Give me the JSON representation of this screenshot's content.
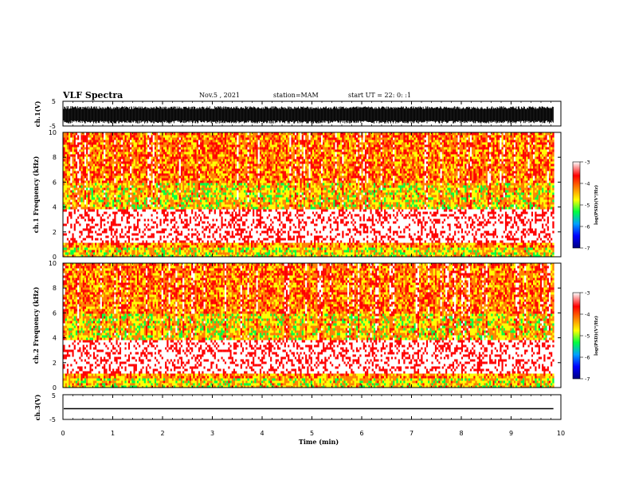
{
  "header": {
    "title": "VLF Spectra",
    "date": "Nov.5 , 2021",
    "station": "station=MAM",
    "start": "start UT = 22: 0: :1"
  },
  "chart_data": [
    {
      "type": "line",
      "name": "ch1-waveform",
      "ylabel": "ch.1(V)",
      "ylim": [
        -5,
        5
      ],
      "yticks": [
        "5",
        "-5"
      ],
      "xlim": [
        0,
        10
      ],
      "signal_range_v": [
        -4,
        3
      ],
      "data_end_min": 9.85,
      "color": "#000000"
    },
    {
      "type": "heatmap",
      "name": "ch1-spectrogram",
      "ylabel": "ch.1 Frequency (kHz)",
      "ylim": [
        0,
        10
      ],
      "yticks": [
        "0",
        "2",
        "4",
        "6",
        "8",
        "10"
      ],
      "xlim": [
        0,
        10
      ],
      "data_end_min": 9.85,
      "bands": [
        {
          "f_min": 0,
          "f_max": 0.8,
          "level": -4.6
        },
        {
          "f_min": 0.8,
          "f_max": 1.2,
          "level": -4.3
        },
        {
          "f_min": 1.2,
          "f_max": 4.0,
          "level": -3.3
        },
        {
          "f_min": 4.0,
          "f_max": 6.0,
          "level": -4.6
        },
        {
          "f_min": 6.0,
          "f_max": 10,
          "level": -4.2
        }
      ]
    },
    {
      "type": "heatmap",
      "name": "ch2-spectrogram",
      "ylabel": "ch.2 Frequency (kHz)",
      "ylim": [
        0,
        10
      ],
      "yticks": [
        "0",
        "2",
        "4",
        "6",
        "8",
        "10"
      ],
      "xlim": [
        0,
        10
      ],
      "data_end_min": 9.85,
      "bands": [
        {
          "f_min": 0,
          "f_max": 0.8,
          "level": -4.6
        },
        {
          "f_min": 0.8,
          "f_max": 1.2,
          "level": -4.3
        },
        {
          "f_min": 1.2,
          "f_max": 4.0,
          "level": -3.3
        },
        {
          "f_min": 4.0,
          "f_max": 6.0,
          "level": -4.6
        },
        {
          "f_min": 6.0,
          "f_max": 10,
          "level": -4.2
        }
      ]
    },
    {
      "type": "line",
      "name": "ch3-waveform",
      "ylabel": "ch.3(V)",
      "ylim": [
        -5,
        5
      ],
      "yticks": [
        "5",
        "-5"
      ],
      "xlim": [
        0,
        10
      ],
      "constant_value_v": 0,
      "data_end_min": 9.85,
      "color": "#000000"
    }
  ],
  "xaxis": {
    "label": "Time (min)",
    "ticks": [
      "0",
      "1",
      "2",
      "3",
      "4",
      "5",
      "6",
      "7",
      "8",
      "9",
      "10"
    ]
  },
  "colorbar": {
    "label": "log(PSD)(V²/Hz)",
    "ticks": [
      "-3",
      "-4",
      "-5",
      "-6",
      "-7"
    ],
    "range": [
      -7,
      -3
    ],
    "colors": [
      "#000080",
      "#0000ff",
      "#00a0ff",
      "#00ff40",
      "#ffff00",
      "#ff8000",
      "#ff0000",
      "#ffffff"
    ]
  }
}
